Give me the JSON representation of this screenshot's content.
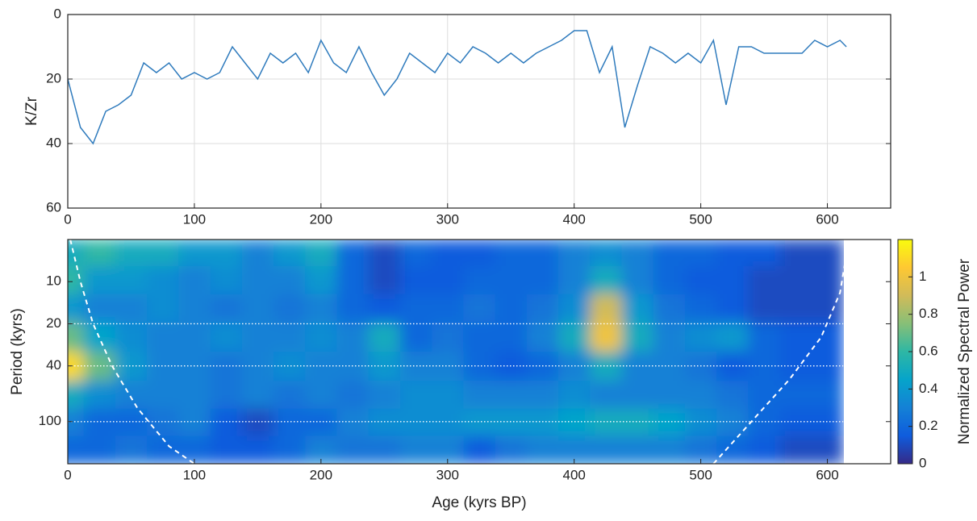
{
  "chart_data": [
    {
      "type": "line",
      "ylabel": "K/Zr",
      "x": [
        0,
        10,
        20,
        30,
        40,
        50,
        60,
        70,
        80,
        90,
        100,
        110,
        120,
        130,
        140,
        150,
        160,
        170,
        180,
        190,
        200,
        210,
        220,
        230,
        240,
        250,
        260,
        270,
        280,
        290,
        300,
        310,
        320,
        330,
        340,
        350,
        360,
        370,
        380,
        390,
        400,
        410,
        420,
        430,
        440,
        450,
        460,
        470,
        480,
        490,
        500,
        510,
        520,
        530,
        540,
        550,
        560,
        570,
        580,
        590,
        600,
        610,
        615
      ],
      "series": [
        {
          "color": "#2f7bbd",
          "values": [
            20,
            35,
            40,
            30,
            28,
            25,
            15,
            18,
            15,
            20,
            18,
            20,
            18,
            10,
            15,
            20,
            12,
            15,
            12,
            18,
            8,
            15,
            18,
            10,
            18,
            25,
            20,
            12,
            15,
            18,
            12,
            15,
            10,
            12,
            15,
            12,
            15,
            12,
            10,
            8,
            5,
            5,
            18,
            10,
            35,
            22,
            10,
            12,
            15,
            12,
            15,
            8,
            28,
            10,
            10,
            12,
            12,
            12,
            12,
            8,
            10,
            8,
            10
          ]
        }
      ],
      "xlim": [
        0,
        650
      ],
      "ylim": [
        0,
        60
      ],
      "y_reversed": true,
      "xticks": [
        0,
        100,
        200,
        300,
        400,
        500,
        600
      ],
      "yticks": [
        0,
        20,
        40,
        60
      ],
      "grid": true
    },
    {
      "type": "heatmap",
      "xlabel": "Age (kyrs BP)",
      "ylabel": "Period (kyrs)",
      "x": [
        0,
        25,
        50,
        75,
        100,
        125,
        150,
        175,
        200,
        225,
        250,
        275,
        300,
        325,
        350,
        375,
        400,
        425,
        450,
        475,
        500,
        525,
        550,
        575,
        600
      ],
      "y": [
        6,
        10,
        15,
        25,
        40,
        65,
        100,
        160
      ],
      "z": [
        [
          0.5,
          0.6,
          0.5,
          0.5,
          0.4,
          0.4,
          0.3,
          0.4,
          0.5,
          0.2,
          0.1,
          0.2,
          0.15,
          0.15,
          0.2,
          0.2,
          0.3,
          0.35,
          0.3,
          0.2,
          0.2,
          0.15,
          0.15,
          0.1,
          0.1
        ],
        [
          0.6,
          0.4,
          0.4,
          0.35,
          0.3,
          0.35,
          0.3,
          0.3,
          0.4,
          0.2,
          0.1,
          0.15,
          0.15,
          0.2,
          0.2,
          0.2,
          0.3,
          0.5,
          0.3,
          0.2,
          0.15,
          0.15,
          0.1,
          0.1,
          0.1
        ],
        [
          0.4,
          0.3,
          0.3,
          0.35,
          0.3,
          0.25,
          0.3,
          0.25,
          0.3,
          0.2,
          0.15,
          0.2,
          0.2,
          0.25,
          0.2,
          0.25,
          0.35,
          0.9,
          0.4,
          0.25,
          0.2,
          0.15,
          0.1,
          0.1,
          0.1
        ],
        [
          0.7,
          0.45,
          0.35,
          0.3,
          0.3,
          0.35,
          0.3,
          0.3,
          0.35,
          0.3,
          0.5,
          0.2,
          0.25,
          0.2,
          0.2,
          0.3,
          0.5,
          1.0,
          0.5,
          0.3,
          0.35,
          0.4,
          0.2,
          0.15,
          0.15
        ],
        [
          1.1,
          0.7,
          0.4,
          0.3,
          0.3,
          0.25,
          0.3,
          0.35,
          0.3,
          0.3,
          0.4,
          0.3,
          0.3,
          0.2,
          0.15,
          0.2,
          0.3,
          0.5,
          0.3,
          0.3,
          0.25,
          0.15,
          0.2,
          0.15,
          0.15
        ],
        [
          0.5,
          0.35,
          0.3,
          0.3,
          0.3,
          0.25,
          0.3,
          0.25,
          0.3,
          0.25,
          0.3,
          0.35,
          0.35,
          0.3,
          0.3,
          0.3,
          0.35,
          0.3,
          0.3,
          0.3,
          0.3,
          0.25,
          0.2,
          0.2,
          0.2
        ],
        [
          0.3,
          0.2,
          0.2,
          0.25,
          0.3,
          0.15,
          0.1,
          0.2,
          0.2,
          0.3,
          0.35,
          0.35,
          0.35,
          0.4,
          0.4,
          0.4,
          0.45,
          0.5,
          0.5,
          0.45,
          0.35,
          0.3,
          0.2,
          0.15,
          0.15
        ],
        [
          0.2,
          0.2,
          0.25,
          0.2,
          0.2,
          0.15,
          0.15,
          0.2,
          0.3,
          0.25,
          0.25,
          0.3,
          0.3,
          0.15,
          0.25,
          0.3,
          0.3,
          0.3,
          0.3,
          0.3,
          0.25,
          0.2,
          0.15,
          0.1,
          0.1
        ]
      ],
      "xlim": [
        0,
        650
      ],
      "ylim": [
        5,
        200
      ],
      "log_y": true,
      "y_reversed": true,
      "xticks": [
        0,
        100,
        200,
        300,
        400,
        500,
        600
      ],
      "yticks": [
        10,
        20,
        40,
        100
      ],
      "hlines": [
        20,
        40,
        100
      ],
      "coi": {
        "x": [
          2,
          10,
          20,
          35,
          55,
          80,
          100,
          null,
          510,
          540,
          570,
          595,
          610,
          617
        ],
        "y": [
          5,
          10,
          20,
          40,
          80,
          150,
          200,
          null,
          200,
          100,
          50,
          25,
          12,
          5
        ]
      },
      "colorbar": {
        "label": "Normalized Spectral Power",
        "clim": [
          0,
          1.2
        ],
        "ticks": [
          0,
          0.2,
          0.4,
          0.6,
          0.8,
          1
        ]
      }
    }
  ]
}
